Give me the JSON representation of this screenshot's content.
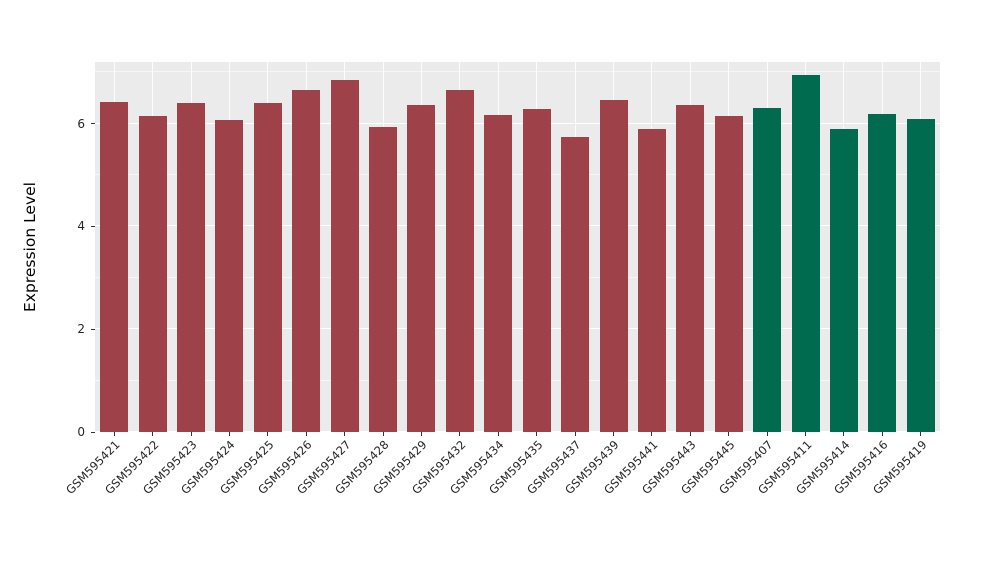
{
  "figure": {
    "background": "#FFFFFF",
    "panel_background": "#EBEBEB",
    "grid_color": "#FFFFFF",
    "axis_text_color": "#262626"
  },
  "chart_data": {
    "type": "bar",
    "title": "",
    "xlabel": "",
    "ylabel": "Expression Level",
    "ylim": [
      0,
      7.2
    ],
    "yticks": [
      0,
      2,
      4,
      6
    ],
    "grid": "on",
    "legend": "none",
    "categories": [
      "GSM595421",
      "GSM595422",
      "GSM595423",
      "GSM595424",
      "GSM595425",
      "GSM595426",
      "GSM595427",
      "GSM595428",
      "GSM595429",
      "GSM595432",
      "GSM595434",
      "GSM595435",
      "GSM595437",
      "GSM595439",
      "GSM595441",
      "GSM595443",
      "GSM595445",
      "GSM595407",
      "GSM595411",
      "GSM595414",
      "GSM595416",
      "GSM595419"
    ],
    "values": [
      6.42,
      6.15,
      6.4,
      6.07,
      6.4,
      6.65,
      6.85,
      5.94,
      6.36,
      6.65,
      6.17,
      6.29,
      5.74,
      6.46,
      5.9,
      6.36,
      6.15,
      6.31,
      6.94,
      5.9,
      6.19,
      6.09
    ],
    "groups": [
      "group1",
      "group1",
      "group1",
      "group1",
      "group1",
      "group1",
      "group1",
      "group1",
      "group1",
      "group1",
      "group1",
      "group1",
      "group1",
      "group1",
      "group1",
      "group1",
      "group1",
      "group2",
      "group2",
      "group2",
      "group2",
      "group2"
    ],
    "group_colors": {
      "group1": "#9E4149",
      "group2": "#006B4F"
    }
  }
}
